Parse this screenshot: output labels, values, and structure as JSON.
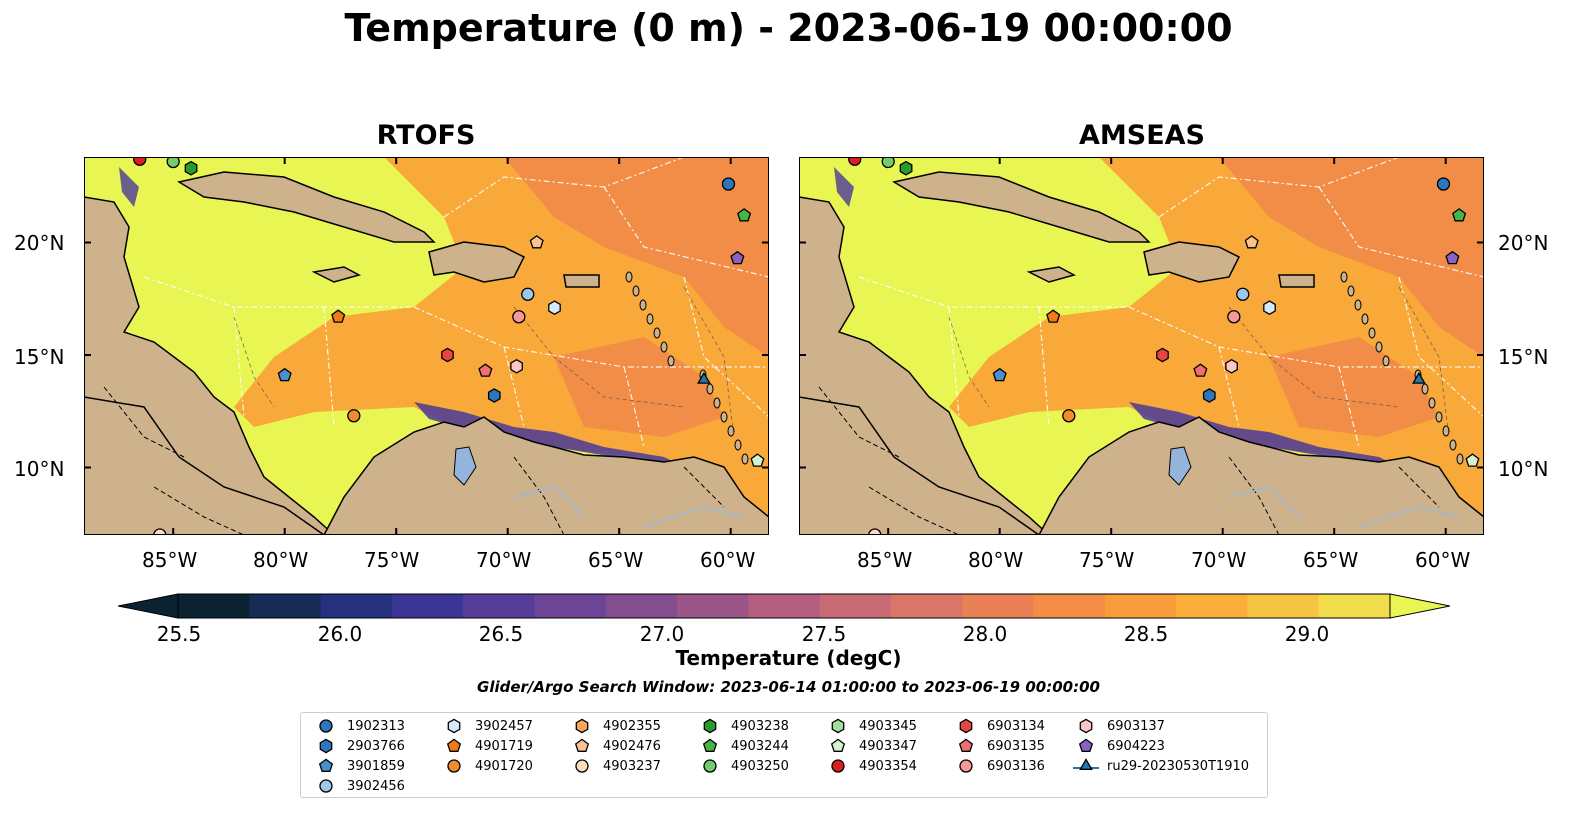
{
  "title": "Temperature (0 m) - 2023-06-19 00:00:00",
  "panels": [
    {
      "title": "RTOFS"
    },
    {
      "title": "AMSEAS"
    }
  ],
  "axes": {
    "lon_ticks": [
      "85°W",
      "80°W",
      "75°W",
      "70°W",
      "65°W",
      "60°W"
    ],
    "lat_ticks": [
      "20°N",
      "15°N",
      "10°N"
    ]
  },
  "colorbar": {
    "label": "Temperature (degC)",
    "ticks": [
      "25.5",
      "26.0",
      "26.5",
      "27.0",
      "27.5",
      "28.0",
      "28.5",
      "29.0"
    ],
    "colors": [
      "#0b2233",
      "#162c56",
      "#25317d",
      "#3b3596",
      "#573d9a",
      "#6c4596",
      "#834d8f",
      "#9c5589",
      "#b55f80",
      "#c96b75",
      "#db7568",
      "#ea8056",
      "#f48c45",
      "#f99c3a",
      "#fbae38",
      "#f6c443",
      "#f1dd4c"
    ],
    "extend_low": "#0b2233",
    "extend_high": "#e8f552"
  },
  "subtitle": "Glider/Argo Search Window: 2023-06-14 01:00:00 to 2023-06-19 00:00:00",
  "map_colors": {
    "land": "#cdb28c",
    "warm_sea": "#e8f552",
    "mid_sea": "#f9a83a",
    "hot_sea": "#f0884a",
    "cold_sea": "#4a3a9a",
    "no_data": "#94b4dc"
  },
  "legend": [
    {
      "label": "1902313",
      "color": "#2b76bd",
      "shape": "circle"
    },
    {
      "label": "2903766",
      "color": "#2b76bd",
      "shape": "hexagon"
    },
    {
      "label": "3901859",
      "color": "#4a90d0",
      "shape": "pentagon"
    },
    {
      "label": "3902456",
      "color": "#9cc8ee",
      "shape": "circle"
    },
    {
      "label": "3902457",
      "color": "#d6e8fa",
      "shape": "hexagon"
    },
    {
      "label": "4901719",
      "color": "#f07a16",
      "shape": "pentagon"
    },
    {
      "label": "4901720",
      "color": "#f28a2e",
      "shape": "circle"
    },
    {
      "label": "4902355",
      "color": "#f7a55c",
      "shape": "hexagon"
    },
    {
      "label": "4902476",
      "color": "#f8c28e",
      "shape": "pentagon"
    },
    {
      "label": "4903237",
      "color": "#fbdcbf",
      "shape": "circle"
    },
    {
      "label": "4903238",
      "color": "#2a9a2a",
      "shape": "hexagon"
    },
    {
      "label": "4903244",
      "color": "#45b545",
      "shape": "pentagon"
    },
    {
      "label": "4903250",
      "color": "#72cc6e",
      "shape": "circle"
    },
    {
      "label": "4903345",
      "color": "#a2dea0",
      "shape": "hexagon"
    },
    {
      "label": "4903347",
      "color": "#d4f2d0",
      "shape": "pentagon"
    },
    {
      "label": "4903354",
      "color": "#d92020",
      "shape": "circle"
    },
    {
      "label": "6903134",
      "color": "#e84444",
      "shape": "hexagon"
    },
    {
      "label": "6903135",
      "color": "#f07070",
      "shape": "pentagon"
    },
    {
      "label": "6903136",
      "color": "#f59a98",
      "shape": "circle"
    },
    {
      "label": "6903137",
      "color": "#fbc6c4",
      "shape": "hexagon"
    },
    {
      "label": "6904223",
      "color": "#8a62c2",
      "shape": "pentagon"
    },
    {
      "label": "ru29-20230530T1910",
      "color": "#1f77b4",
      "shape": "triangle-line"
    }
  ],
  "markers": [
    {
      "label": "1902313",
      "lon": -60.1,
      "lat": 22.6
    },
    {
      "label": "2903766",
      "lon": -70.6,
      "lat": 13.2
    },
    {
      "label": "3901859",
      "lon": -80.0,
      "lat": 14.1
    },
    {
      "label": "3902456",
      "lon": -69.1,
      "lat": 17.7
    },
    {
      "label": "3902457",
      "lon": -67.9,
      "lat": 17.1
    },
    {
      "label": "4901719",
      "lon": -77.6,
      "lat": 16.7
    },
    {
      "label": "4901720",
      "lon": -76.9,
      "lat": 12.3
    },
    {
      "label": "4902476",
      "lon": -68.7,
      "lat": 20.0
    },
    {
      "label": "4903237",
      "lon": -85.6,
      "lat": 7.0
    },
    {
      "label": "4903238",
      "lon": -84.2,
      "lat": 23.3
    },
    {
      "label": "4903244",
      "lon": -59.4,
      "lat": 21.2
    },
    {
      "label": "4903250",
      "lon": -85.0,
      "lat": 23.6
    },
    {
      "label": "4903347",
      "lon": -58.8,
      "lat": 10.3
    },
    {
      "label": "4903354",
      "lon": -86.5,
      "lat": 23.7
    },
    {
      "label": "6903134",
      "lon": -72.7,
      "lat": 15.0
    },
    {
      "label": "6903135",
      "lon": -71.0,
      "lat": 14.3
    },
    {
      "label": "6903136",
      "lon": -69.5,
      "lat": 16.7
    },
    {
      "label": "6903137",
      "lon": -69.6,
      "lat": 14.5
    },
    {
      "label": "6904223",
      "lon": -59.7,
      "lat": 19.3
    },
    {
      "label": "ru29-20230530T1910",
      "lon": -61.2,
      "lat": 13.9
    }
  ]
}
